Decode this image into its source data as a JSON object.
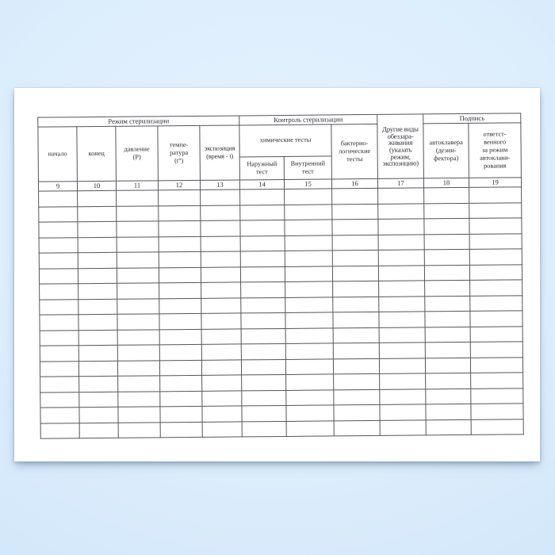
{
  "colors": {
    "background_blue": "#d6eafc",
    "background_corner_blue": "#c2dcf4",
    "paper_white": "#ffffff",
    "grid_line": "#55555c",
    "text": "#2f2f35"
  },
  "document_table": {
    "group_headers": {
      "sterilization_mode": "Режим стерилизации",
      "sterilization_control": "Контроль стерилизации",
      "signature": "Подпись"
    },
    "column_headers": {
      "start": "начало",
      "end": "конец",
      "pressure": "давление\n(Р)",
      "temperature": "темпе-\nратура\n(t°)",
      "exposure": "экспозиция\n(время - t)",
      "chemical_tests": "химические тесты",
      "outer_test": "Наружный\nтест",
      "inner_test": "Внутренний\nтест",
      "bacteriological_tests": "бактерио-\nлогические\nтесты",
      "other_disinfection": "Другие виды\nобеззара-\nживания\n(указать\nрежим,\nэкспозицию)",
      "autoclave_operator": "автоклавера\n(дезин-\nфектора)",
      "regime_responsible": "ответст-\nвенного\nза режим\nавтоклави-\nрования"
    },
    "column_numbers": [
      "9",
      "10",
      "11",
      "12",
      "13",
      "14",
      "15",
      "16",
      "17",
      "18",
      "19"
    ],
    "empty_row_count": 16
  }
}
